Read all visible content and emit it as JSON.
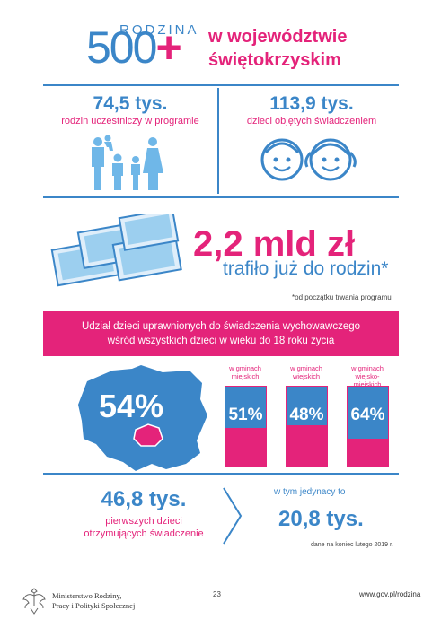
{
  "header": {
    "logo_word": "RODZINA",
    "logo_number": "500",
    "logo_plus": "+",
    "title_line1": "w województwie",
    "title_line2": "świętokrzyskim"
  },
  "stats_top": {
    "families_value": "74,5 tys.",
    "families_caption": "rodzin uczestniczy w programie",
    "children_value": "113,9 tys.",
    "children_caption": "dzieci objętych świadczeniem"
  },
  "money": {
    "amount": "2,2 mld zł",
    "caption": "trafiło już do rodzin*",
    "footnote": "*od początku trwania programu"
  },
  "banner": {
    "line1": "Udział dzieci uprawnionych do świadczenia wychowawczego",
    "line2": "wśród wszystkich dzieci w wieku do 18 roku życia"
  },
  "map": {
    "percent_label": "54%",
    "value": 54
  },
  "bars": [
    {
      "label_line1": "w gminach",
      "label_line2": "miejskich",
      "percent_label": "51%",
      "value": 51
    },
    {
      "label_line1": "w gminach",
      "label_line2": "wiejskich",
      "percent_label": "48%",
      "value": 48
    },
    {
      "label_line1": "w gminach",
      "label_line2": "wiejsko-miejskich",
      "percent_label": "64%",
      "value": 64
    }
  ],
  "stats_bottom": {
    "first_value": "46,8 tys.",
    "first_caption_line1": "pierwszych dzieci",
    "first_caption_line2": "otrzymujących świadczenie",
    "only_caption": "w tym jedynacy to",
    "only_value": "20,8 tys.",
    "data_note": "dane na koniec lutego 2019 r."
  },
  "footer": {
    "ministry_line1": "Ministerstwo Rodziny,",
    "ministry_line2": "Pracy i Polityki Społecznej",
    "page_number": "23",
    "website": "www.gov.pl/rodzina"
  },
  "colors": {
    "blue": "#3b86c8",
    "pink": "#e4237a",
    "light_blue": "#6fb7e8"
  },
  "icons": [
    "family-icon",
    "children-faces-icon",
    "banknotes-icon",
    "poland-map-icon",
    "chevron-right-icon",
    "eagle-emblem-icon"
  ]
}
